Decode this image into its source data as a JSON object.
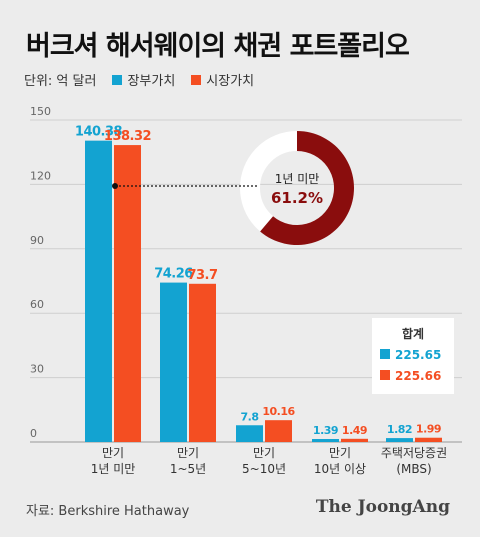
{
  "title": "버크셔 해서웨이의 채권 포트폴리오",
  "unit_label": "단위: 억 달러",
  "source": "자료: Berkshire Hathaway",
  "logo": "The JoongAng",
  "colors": {
    "book": "#13a3d1",
    "market": "#f44e22",
    "donut": "#8a0d0d",
    "donut_rest": "#ffffff"
  },
  "chart_data": {
    "type": "bar",
    "categories": [
      [
        "만기",
        "1년 미만"
      ],
      [
        "만기",
        "1~5년"
      ],
      [
        "만기",
        "5~10년"
      ],
      [
        "만기",
        "10년 이상"
      ],
      [
        "주택저당증권",
        "(MBS)"
      ]
    ],
    "series": [
      {
        "name": "장부가치",
        "values": [
          140.38,
          74.26,
          7.8,
          1.39,
          1.82
        ],
        "labels": [
          "140.38",
          "74.26",
          "7.8",
          "1.39",
          "1.82"
        ]
      },
      {
        "name": "시장가치",
        "values": [
          138.32,
          73.7,
          10.16,
          1.49,
          1.99
        ],
        "labels": [
          "138.32",
          "73.7",
          "10.16",
          "1.49",
          "1.99"
        ]
      }
    ],
    "yticks": [
      "0",
      "30",
      "60",
      "90",
      "120",
      "150"
    ],
    "ylim": [
      0,
      150
    ],
    "grid": true,
    "legend_position": "top-left",
    "totals": {
      "label": "합계",
      "book": "225.65",
      "market": "225.66"
    },
    "donut": {
      "label": "1년 미만",
      "value_label": "61.2%",
      "value": 61.2
    }
  }
}
